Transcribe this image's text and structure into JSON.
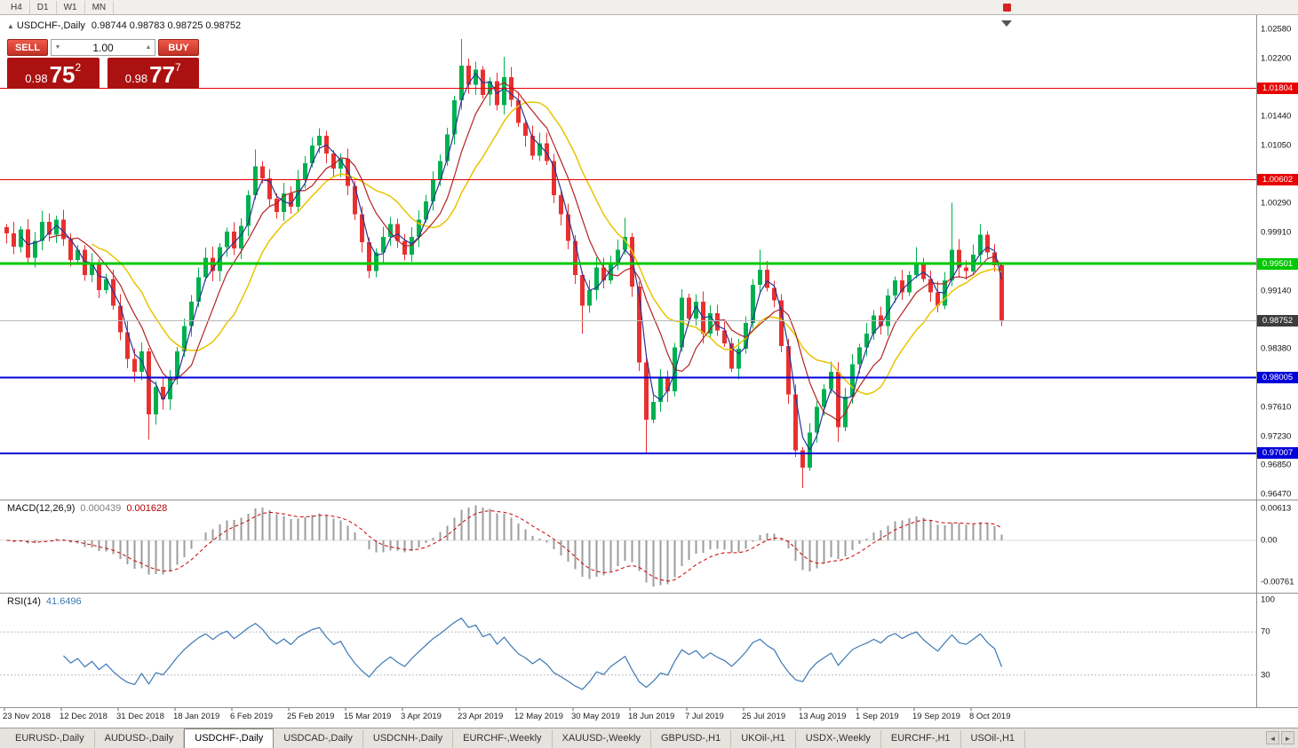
{
  "toolbar": {
    "timeframes": [
      "H4",
      "D1",
      "W1",
      "MN"
    ]
  },
  "chart": {
    "collapse_glyph": "▲",
    "title": "USDCHF-,Daily",
    "ohlc": "0.98744 0.98783 0.98725 0.98752"
  },
  "trade": {
    "sell_label": "SELL",
    "buy_label": "BUY",
    "volume": "1.00",
    "spin_down_glyph": "▼",
    "spin_up_glyph": "▲",
    "sell_price": {
      "base": "0.98",
      "big": "75",
      "sup": "2"
    },
    "buy_price": {
      "base": "0.98",
      "big": "77",
      "sup": "7"
    }
  },
  "indicators": {
    "macd": {
      "name": "MACD(12,26,9)",
      "value_main": "0.000439",
      "value_signal": "0.001628",
      "axis_top": "0.00613",
      "axis_zero": "0.00",
      "axis_bottom": "-0.00761"
    },
    "rsi": {
      "name": "RSI(14)",
      "value": "41.6496",
      "axis": [
        "100",
        "70",
        "30"
      ],
      "levels": [
        70,
        30
      ]
    }
  },
  "chart_data": {
    "type": "candlestick",
    "symbol": "USDCHF",
    "period": "Daily",
    "ylim": [
      0.9647,
      1.0258
    ],
    "y_axis_labels": [
      "1.02580",
      "1.02200",
      "1.01440",
      "1.01050",
      "1.00290",
      "0.99910",
      "0.99140",
      "0.98380",
      "0.97610",
      "0.97230",
      "0.96850",
      "0.96470"
    ],
    "levels": [
      {
        "price": 1.01804,
        "label": "1.01804",
        "color": "#E80000",
        "width": 1
      },
      {
        "price": 1.00602,
        "label": "1.00602",
        "color": "#E80000",
        "width": 1
      },
      {
        "price": 0.99501,
        "label": "0.99501",
        "color": "#00C800",
        "width": 3
      },
      {
        "price": 0.98005,
        "label": "0.98005",
        "color": "#0000D8",
        "width": 2
      },
      {
        "price": 0.97007,
        "label": "0.97007",
        "color": "#0000D8",
        "width": 2
      }
    ],
    "current_price": {
      "price": 0.98752,
      "label": "0.98752",
      "box_color": "#3C3C3C"
    },
    "x_labels": [
      "23 Nov 2018",
      "12 Dec 2018",
      "31 Dec 2018",
      "18 Jan 2019",
      "6 Feb 2019",
      "25 Feb 2019",
      "15 Mar 2019",
      "3 Apr 2019",
      "23 Apr 2019",
      "12 May 2019",
      "30 May 2019",
      "18 Jun 2019",
      "7 Jul 2019",
      "25 Jul 2019",
      "13 Aug 2019",
      "1 Sep 2019",
      "19 Sep 2019",
      "8 Oct 2019"
    ],
    "first_open": 0.9998,
    "closes": [
      0.999,
      0.9972,
      0.9995,
      0.9958,
      0.998,
      1.0005,
      0.9988,
      1.0008,
      0.9982,
      0.9955,
      0.9968,
      0.9935,
      0.995,
      0.9915,
      0.993,
      0.9895,
      0.986,
      0.9825,
      0.9808,
      0.9835,
      0.9752,
      0.9788,
      0.9772,
      0.98,
      0.9835,
      0.9868,
      0.99,
      0.9932,
      0.9958,
      0.994,
      0.9972,
      0.9992,
      0.997,
      1.0,
      1.004,
      1.0078,
      1.0062,
      1.0035,
      1.0018,
      1.0042,
      1.0025,
      1.006,
      1.0082,
      1.0105,
      1.0118,
      1.0095,
      1.0075,
      1.0088,
      1.0052,
      1.0015,
      0.9978,
      0.994,
      0.9965,
      0.9985,
      1.0002,
      0.998,
      0.9962,
      0.9985,
      1.0008,
      1.0032,
      1.006,
      1.0085,
      1.012,
      1.0165,
      1.021,
      1.0185,
      1.0205,
      1.0172,
      1.019,
      1.0158,
      1.0195,
      1.0165,
      1.0135,
      1.0118,
      1.0092,
      1.0108,
      1.0085,
      1.004,
      1.0015,
      0.998,
      0.9935,
      0.9895,
      0.9915,
      0.9945,
      0.9928,
      0.9952,
      0.9968,
      0.9985,
      0.992,
      0.982,
      0.9745,
      0.9768,
      0.98,
      0.9782,
      0.984,
      0.9905,
      0.9878,
      0.99,
      0.9858,
      0.9885,
      0.9862,
      0.9845,
      0.9812,
      0.9838,
      0.9872,
      0.9922,
      0.9942,
      0.9918,
      0.9902,
      0.9842,
      0.9778,
      0.9705,
      0.9682,
      0.9728,
      0.9762,
      0.9785,
      0.9808,
      0.9735,
      0.9775,
      0.9818,
      0.984,
      0.9858,
      0.9882,
      0.9868,
      0.9908,
      0.9928,
      0.9912,
      0.9935,
      0.9952,
      0.993,
      0.9912,
      0.9895,
      0.9928,
      0.9968,
      0.9945,
      0.994,
      0.9962,
      0.9988,
      0.9965,
      0.9948,
      0.98752
    ],
    "wick_overrides": {
      "20": {
        "low": 0.9719
      },
      "35": {
        "high": 1.01
      },
      "44": {
        "high": 1.0128
      },
      "64": {
        "high": 1.0245
      },
      "70": {
        "high": 1.0222
      },
      "81": {
        "low": 0.9858
      },
      "87": {
        "high": 1.001
      },
      "90": {
        "low": 0.9701
      },
      "106": {
        "high": 0.9968
      },
      "112": {
        "low": 0.9655
      },
      "117": {
        "low": 0.9716
      },
      "128": {
        "high": 0.9972
      },
      "133": {
        "high": 1.003
      },
      "137": {
        "high": 1.0002
      },
      "140": {
        "low": 0.9868,
        "high": 0.995
      }
    },
    "up_color": "#00B050",
    "down_color": "#E83030",
    "ma": {
      "fast": {
        "period": 3,
        "color": "#283593"
      },
      "mid": {
        "period": 7,
        "color": "#B22222"
      },
      "slow": {
        "period": 13,
        "color": "#E8C400"
      }
    }
  },
  "tabs": {
    "items": [
      "EURUSD-,Daily",
      "AUDUSD-,Daily",
      "USDCHF-,Daily",
      "USDCAD-,Daily",
      "USDCNH-,Daily",
      "EURCHF-,Weekly",
      "XAUUSD-,Weekly",
      "GBPUSD-,H1",
      "UKOil-,H1",
      "USDX-,Weekly",
      "EURCHF-,H1",
      "USOil-,H1"
    ],
    "active_index": 2,
    "scroll_left_glyph": "◄",
    "scroll_right_glyph": "►"
  }
}
